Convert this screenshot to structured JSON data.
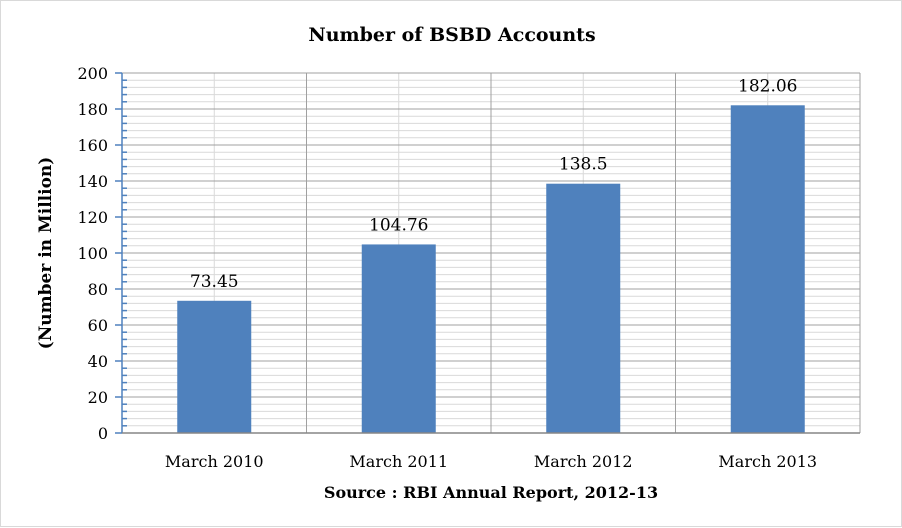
{
  "chart_data": {
    "type": "bar",
    "title": "Number of BSBD Accounts",
    "ylabel": "(Number in Million)",
    "xlabel": "Source : RBI Annual Report, 2012-13",
    "categories": [
      "March 2010",
      "March 2011",
      "March 2012",
      "March 2013"
    ],
    "values": [
      73.45,
      104.76,
      138.5,
      182.06
    ],
    "data_labels": [
      "73.45",
      "104.76",
      "138.5",
      "182.06"
    ],
    "ylim": [
      0,
      200
    ],
    "yticks": [
      0,
      20,
      40,
      60,
      80,
      100,
      120,
      140,
      160,
      180,
      200
    ],
    "grid": true,
    "legend": "none",
    "bar_color": "#4f81bd"
  }
}
